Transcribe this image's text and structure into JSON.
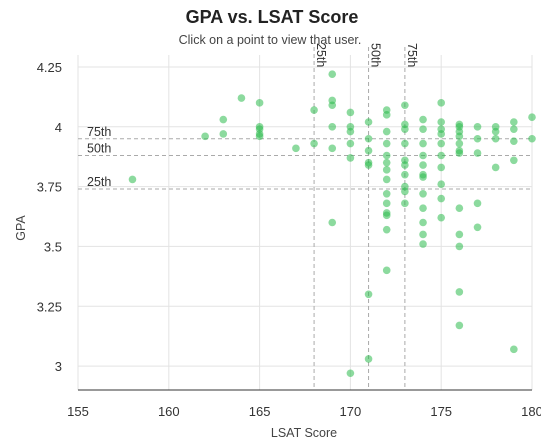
{
  "title": "GPA vs. LSAT Score",
  "subtitle": "Click on a point to view that user.",
  "colors": {
    "point": "#2dbb4e",
    "grid": "#e3e3e3",
    "dash": "#aaaaaa"
  },
  "chart_data": {
    "type": "scatter",
    "xlabel": "LSAT Score",
    "ylabel": "GPA",
    "xlim": [
      155,
      180
    ],
    "ylim": [
      2.9,
      4.3
    ],
    "x_ticks": [
      "155",
      "160",
      "165",
      "170",
      "175",
      "180"
    ],
    "y_ticks": [
      "4.25",
      "4",
      "3.75",
      "3.5",
      "3.25",
      "3"
    ],
    "x_tick_values": [
      155,
      160,
      165,
      170,
      175,
      180
    ],
    "y_tick_values": [
      4.25,
      4.0,
      3.75,
      3.5,
      3.25,
      3.0
    ],
    "grid": true,
    "lsat_percentiles": [
      {
        "label": "25th",
        "value": 168
      },
      {
        "label": "50th",
        "value": 171
      },
      {
        "label": "75th",
        "value": 173
      }
    ],
    "gpa_percentiles": [
      {
        "label": "75th",
        "value": 3.95
      },
      {
        "label": "50th",
        "value": 3.88
      },
      {
        "label": "25th",
        "value": 3.74
      }
    ],
    "points": [
      [
        158,
        3.78
      ],
      [
        162,
        3.96
      ],
      [
        163,
        3.97
      ],
      [
        163,
        4.03
      ],
      [
        164,
        4.12
      ],
      [
        165,
        4.1
      ],
      [
        165,
        4.0
      ],
      [
        165,
        3.99
      ],
      [
        165,
        3.97
      ],
      [
        165,
        3.96
      ],
      [
        167,
        3.91
      ],
      [
        168,
        4.07
      ],
      [
        168,
        3.93
      ],
      [
        169,
        4.22
      ],
      [
        169,
        4.11
      ],
      [
        169,
        4.09
      ],
      [
        169,
        4.0
      ],
      [
        169,
        3.91
      ],
      [
        169,
        3.6
      ],
      [
        170,
        4.06
      ],
      [
        170,
        4.0
      ],
      [
        170,
        3.98
      ],
      [
        170,
        3.93
      ],
      [
        170,
        3.87
      ],
      [
        170,
        2.97
      ],
      [
        171,
        4.02
      ],
      [
        171,
        3.95
      ],
      [
        171,
        3.9
      ],
      [
        171,
        3.85
      ],
      [
        171,
        3.84
      ],
      [
        171,
        3.3
      ],
      [
        171,
        3.03
      ],
      [
        172,
        4.07
      ],
      [
        172,
        4.05
      ],
      [
        172,
        3.98
      ],
      [
        172,
        3.93
      ],
      [
        172,
        3.88
      ],
      [
        172,
        3.85
      ],
      [
        172,
        3.82
      ],
      [
        172,
        3.78
      ],
      [
        172,
        3.72
      ],
      [
        172,
        3.68
      ],
      [
        172,
        3.64
      ],
      [
        172,
        3.63
      ],
      [
        172,
        3.57
      ],
      [
        172,
        3.4
      ],
      [
        173,
        4.09
      ],
      [
        173,
        4.01
      ],
      [
        173,
        3.99
      ],
      [
        173,
        3.93
      ],
      [
        173,
        3.86
      ],
      [
        173,
        3.84
      ],
      [
        173,
        3.8
      ],
      [
        173,
        3.75
      ],
      [
        173,
        3.73
      ],
      [
        173,
        3.68
      ],
      [
        174,
        4.03
      ],
      [
        174,
        3.99
      ],
      [
        174,
        3.93
      ],
      [
        174,
        3.88
      ],
      [
        174,
        3.84
      ],
      [
        174,
        3.8
      ],
      [
        174,
        3.79
      ],
      [
        174,
        3.72
      ],
      [
        174,
        3.66
      ],
      [
        174,
        3.6
      ],
      [
        174,
        3.55
      ],
      [
        174,
        3.51
      ],
      [
        175,
        4.1
      ],
      [
        175,
        4.02
      ],
      [
        175,
        3.99
      ],
      [
        175,
        3.97
      ],
      [
        175,
        3.93
      ],
      [
        175,
        3.88
      ],
      [
        175,
        3.83
      ],
      [
        175,
        3.76
      ],
      [
        175,
        3.7
      ],
      [
        175,
        3.62
      ],
      [
        176,
        4.01
      ],
      [
        176,
        4.0
      ],
      [
        176,
        3.98
      ],
      [
        176,
        3.96
      ],
      [
        176,
        3.93
      ],
      [
        176,
        3.9
      ],
      [
        176,
        3.89
      ],
      [
        176,
        3.66
      ],
      [
        176,
        3.55
      ],
      [
        176,
        3.5
      ],
      [
        176,
        3.31
      ],
      [
        176,
        3.17
      ],
      [
        177,
        4.0
      ],
      [
        177,
        3.95
      ],
      [
        177,
        3.89
      ],
      [
        177,
        3.68
      ],
      [
        177,
        3.58
      ],
      [
        178,
        4.0
      ],
      [
        178,
        3.98
      ],
      [
        178,
        3.95
      ],
      [
        178,
        3.83
      ],
      [
        179,
        4.02
      ],
      [
        179,
        3.99
      ],
      [
        179,
        3.94
      ],
      [
        179,
        3.86
      ],
      [
        179,
        3.07
      ],
      [
        180,
        4.04
      ],
      [
        180,
        3.95
      ]
    ]
  }
}
